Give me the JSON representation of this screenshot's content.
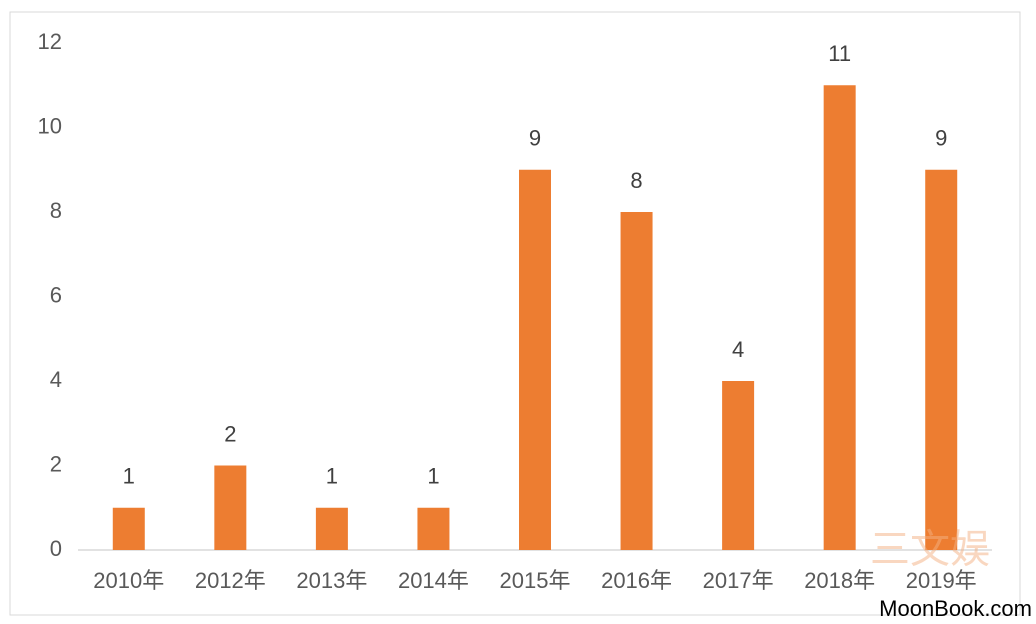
{
  "chart_data": {
    "type": "bar",
    "categories": [
      "2010年",
      "2012年",
      "2013年",
      "2014年",
      "2015年",
      "2016年",
      "2017年",
      "2018年",
      "2019年"
    ],
    "values": [
      1,
      2,
      1,
      1,
      9,
      8,
      4,
      11,
      9
    ],
    "color": "#ed7d31",
    "ylim": [
      0,
      12
    ],
    "yticks": [
      0,
      2,
      4,
      6,
      8,
      10,
      12
    ],
    "grid": false,
    "watermarks": [
      "三文娱",
      "MoonBook.com"
    ]
  }
}
